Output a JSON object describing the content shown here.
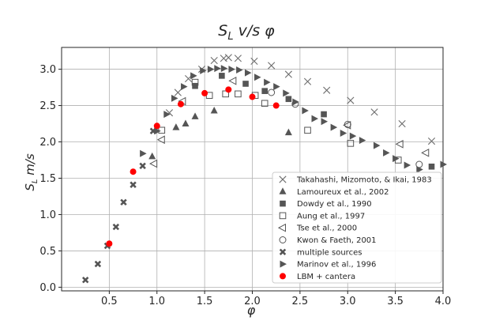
{
  "chart_data": {
    "type": "scatter",
    "title_main": "S",
    "title_sub": "L",
    "title_rest": " v/s φ",
    "ylabel_main": "S",
    "ylabel_sub": "L",
    "ylabel_rest": " m/s",
    "xlabel": "φ",
    "xlim": [
      0.0,
      4.0
    ],
    "ylim": [
      -0.05,
      3.3
    ],
    "grid": true,
    "legend_position": "lower-right",
    "xticks": [
      {
        "v": 0.5,
        "label": "0.5"
      },
      {
        "v": 1.0,
        "label": "1.0"
      },
      {
        "v": 1.5,
        "label": "1.5"
      },
      {
        "v": 2.0,
        "label": "2.0"
      },
      {
        "v": 2.5,
        "label": "2.5"
      },
      {
        "v": 3.0,
        "label": "3.0"
      },
      {
        "v": 3.5,
        "label": "3.5"
      },
      {
        "v": 4.0,
        "label": "4.0"
      }
    ],
    "yticks": [
      {
        "v": 0.0,
        "label": "0.0"
      },
      {
        "v": 0.5,
        "label": "0.5"
      },
      {
        "v": 1.0,
        "label": "1.0"
      },
      {
        "v": 1.5,
        "label": "1.5"
      },
      {
        "v": 2.0,
        "label": "2.0"
      },
      {
        "v": 2.5,
        "label": "2.5"
      },
      {
        "v": 3.0,
        "label": "3.0"
      }
    ],
    "series": [
      {
        "name": "Takahashi, Mizomoto, & Ikai, 1983",
        "marker": "x",
        "color": "#6e6e6e",
        "points": [
          [
            1.13,
            2.4
          ],
          [
            1.22,
            2.68
          ],
          [
            1.33,
            2.87
          ],
          [
            1.47,
            3.0
          ],
          [
            1.6,
            3.12
          ],
          [
            1.7,
            3.15
          ],
          [
            1.75,
            3.16
          ],
          [
            1.85,
            3.15
          ],
          [
            2.02,
            3.11
          ],
          [
            2.2,
            3.05
          ],
          [
            2.38,
            2.93
          ],
          [
            2.58,
            2.83
          ],
          [
            2.78,
            2.71
          ],
          [
            3.03,
            2.57
          ],
          [
            3.28,
            2.41
          ],
          [
            3.57,
            2.25
          ],
          [
            3.88,
            2.01
          ]
        ]
      },
      {
        "name": "Lamoureux et al., 2002",
        "marker": "triangle-up",
        "color": "#555555",
        "points": [
          [
            0.95,
            1.8
          ],
          [
            1.2,
            2.2
          ],
          [
            1.3,
            2.25
          ],
          [
            1.4,
            2.35
          ],
          [
            1.6,
            2.43
          ],
          [
            2.38,
            2.13
          ]
        ]
      },
      {
        "name": "Dowdy et al., 1990",
        "marker": "square",
        "color": "#555555",
        "points": [
          [
            1.4,
            2.77
          ],
          [
            1.68,
            2.91
          ],
          [
            1.93,
            2.8
          ],
          [
            2.13,
            2.7
          ],
          [
            2.38,
            2.59
          ],
          [
            2.75,
            2.38
          ],
          [
            3.88,
            1.66
          ]
        ]
      },
      {
        "name": "Aung et al., 1997",
        "marker": "square-open",
        "color": "#555555",
        "points": [
          [
            1.05,
            2.16
          ],
          [
            1.4,
            2.82
          ],
          [
            1.55,
            2.64
          ],
          [
            1.72,
            2.66
          ],
          [
            1.85,
            2.66
          ],
          [
            2.03,
            2.64
          ],
          [
            2.13,
            2.53
          ],
          [
            2.58,
            2.16
          ],
          [
            3.03,
            1.98
          ],
          [
            3.53,
            1.75
          ]
        ]
      },
      {
        "name": "Tse et al., 2000",
        "marker": "triangle-left-open",
        "color": "#555555",
        "points": [
          [
            0.97,
            1.7
          ],
          [
            1.05,
            2.03
          ],
          [
            1.27,
            2.56
          ],
          [
            1.8,
            2.84
          ],
          [
            3.0,
            2.23
          ],
          [
            3.55,
            1.97
          ],
          [
            3.82,
            1.85
          ]
        ]
      },
      {
        "name": "Kwon & Faeth, 2001",
        "marker": "circle-open",
        "color": "#555555",
        "points": [
          [
            2.2,
            2.68
          ],
          [
            2.45,
            2.52
          ],
          [
            3.0,
            2.24
          ],
          [
            3.75,
            1.69
          ]
        ]
      },
      {
        "name": "multiple sources",
        "marker": "x-bold",
        "color": "#555555",
        "points": [
          [
            0.25,
            0.1
          ],
          [
            0.38,
            0.32
          ],
          [
            0.48,
            0.57
          ],
          [
            0.57,
            0.83
          ],
          [
            0.65,
            1.17
          ],
          [
            0.75,
            1.41
          ],
          [
            0.85,
            1.67
          ],
          [
            0.96,
            2.15
          ]
        ]
      },
      {
        "name": "Marinov et al., 1996",
        "marker": "triangle-right",
        "color": "#555555",
        "points": [
          [
            0.85,
            1.84
          ],
          [
            1.0,
            2.15
          ],
          [
            1.1,
            2.38
          ],
          [
            1.18,
            2.6
          ],
          [
            1.28,
            2.76
          ],
          [
            1.38,
            2.91
          ],
          [
            1.48,
            2.98
          ],
          [
            1.56,
            3.0
          ],
          [
            1.63,
            3.01
          ],
          [
            1.7,
            3.01
          ],
          [
            1.78,
            3.0
          ],
          [
            1.86,
            2.99
          ],
          [
            1.95,
            2.95
          ],
          [
            2.05,
            2.89
          ],
          [
            2.15,
            2.82
          ],
          [
            2.25,
            2.76
          ],
          [
            2.35,
            2.67
          ],
          [
            2.45,
            2.55
          ],
          [
            2.55,
            2.43
          ],
          [
            2.65,
            2.32
          ],
          [
            2.75,
            2.28
          ],
          [
            2.85,
            2.2
          ],
          [
            2.95,
            2.12
          ],
          [
            3.05,
            2.08
          ],
          [
            3.15,
            2.02
          ],
          [
            3.3,
            1.95
          ],
          [
            3.4,
            1.85
          ],
          [
            3.5,
            1.77
          ],
          [
            3.62,
            1.68
          ],
          [
            3.75,
            1.62
          ],
          [
            4.0,
            1.69
          ]
        ]
      },
      {
        "name": "LBM + cantera",
        "marker": "circle",
        "color": "#ff0000",
        "points": [
          [
            0.5,
            0.6
          ],
          [
            0.75,
            1.59
          ],
          [
            1.0,
            2.22
          ],
          [
            1.25,
            2.52
          ],
          [
            1.5,
            2.67
          ],
          [
            1.75,
            2.72
          ],
          [
            2.0,
            2.62
          ],
          [
            2.25,
            2.5
          ]
        ]
      }
    ]
  }
}
